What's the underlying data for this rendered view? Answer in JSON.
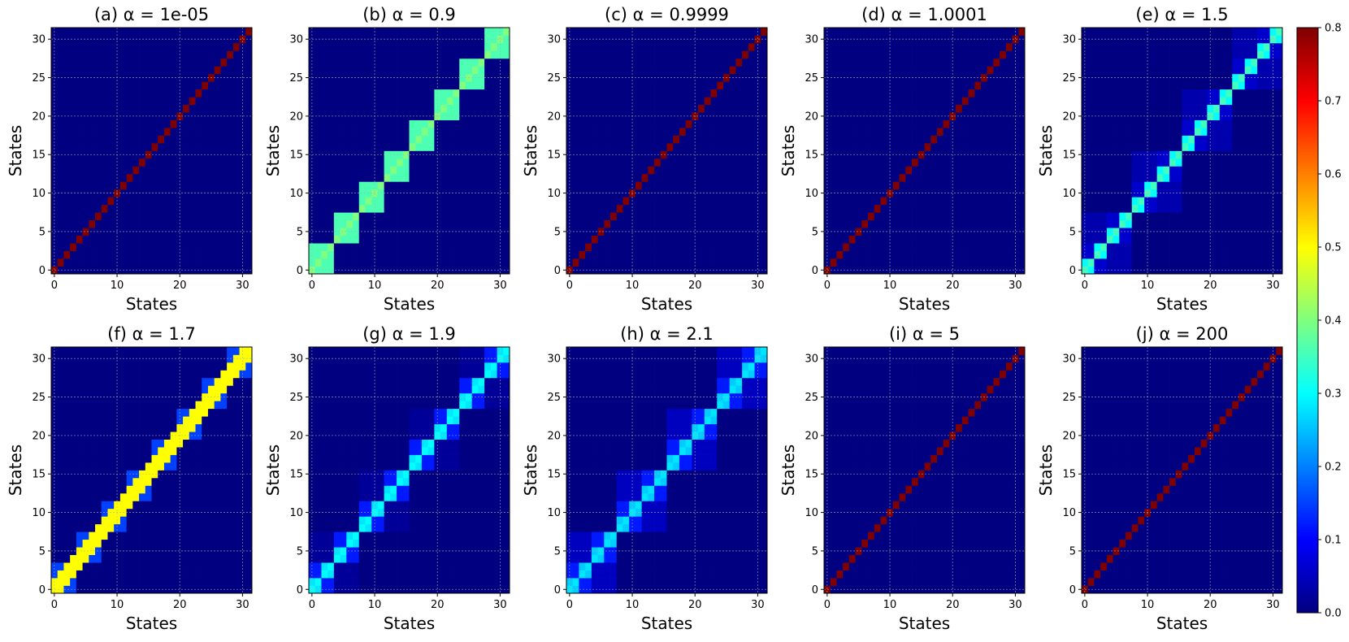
{
  "chart_data": [
    {
      "type": "heatmap",
      "title": "(a) α = 1e-05",
      "alpha": 1e-05,
      "pattern": "diagonal",
      "xlabel": "States",
      "ylabel": "States",
      "xlim": [
        -0.5,
        31.5
      ],
      "ylim": [
        -0.5,
        31.5
      ],
      "xticks": [
        0,
        10,
        20,
        30
      ],
      "yticks": [
        0,
        5,
        10,
        15,
        20,
        25,
        30
      ],
      "grid": true
    },
    {
      "type": "heatmap",
      "title": "(b) α = 0.9",
      "alpha": 0.9,
      "pattern": "block-4",
      "xlabel": "States",
      "ylabel": "States",
      "xlim": [
        -0.5,
        31.5
      ],
      "ylim": [
        -0.5,
        31.5
      ],
      "xticks": [
        0,
        10,
        20,
        30
      ],
      "yticks": [
        0,
        5,
        10,
        15,
        20,
        25,
        30
      ],
      "grid": true
    },
    {
      "type": "heatmap",
      "title": "(c) α = 0.9999",
      "alpha": 0.9999,
      "pattern": "diagonal",
      "xlabel": "States",
      "ylabel": "States",
      "xlim": [
        -0.5,
        31.5
      ],
      "ylim": [
        -0.5,
        31.5
      ],
      "xticks": [
        0,
        10,
        20,
        30
      ],
      "yticks": [
        0,
        5,
        10,
        15,
        20,
        25,
        30
      ],
      "grid": true
    },
    {
      "type": "heatmap",
      "title": "(d) α = 1.0001",
      "alpha": 1.0001,
      "pattern": "diagonal",
      "xlabel": "States",
      "ylabel": "States",
      "xlim": [
        -0.5,
        31.5
      ],
      "ylim": [
        -0.5,
        31.5
      ],
      "xticks": [
        0,
        10,
        20,
        30
      ],
      "yticks": [
        0,
        5,
        10,
        15,
        20,
        25,
        30
      ],
      "grid": true
    },
    {
      "type": "heatmap",
      "title": "(e) α = 1.5",
      "alpha": 1.5,
      "pattern": "hierarchical",
      "xlabel": "States",
      "ylabel": "States",
      "xlim": [
        -0.5,
        31.5
      ],
      "ylim": [
        -0.5,
        31.5
      ],
      "xticks": [
        0,
        10,
        20,
        30
      ],
      "yticks": [
        0,
        5,
        10,
        15,
        20,
        25,
        30
      ],
      "grid": true
    },
    {
      "type": "heatmap",
      "title": "(f) α = 1.7",
      "alpha": 1.7,
      "pattern": "tridiagonal-blocks",
      "xlabel": "States",
      "ylabel": "States",
      "xlim": [
        -0.5,
        31.5
      ],
      "ylim": [
        -0.5,
        31.5
      ],
      "xticks": [
        0,
        10,
        20,
        30
      ],
      "yticks": [
        0,
        5,
        10,
        15,
        20,
        25,
        30
      ],
      "grid": true
    },
    {
      "type": "heatmap",
      "title": "(g) α = 1.9",
      "alpha": 1.9,
      "pattern": "band-blocks",
      "xlabel": "States",
      "ylabel": "States",
      "xlim": [
        -0.5,
        31.5
      ],
      "ylim": [
        -0.5,
        31.5
      ],
      "xticks": [
        0,
        10,
        20,
        30
      ],
      "yticks": [
        0,
        5,
        10,
        15,
        20,
        25,
        30
      ],
      "grid": true
    },
    {
      "type": "heatmap",
      "title": "(h) α = 2.1",
      "alpha": 2.1,
      "pattern": "band-blocks-wide",
      "xlabel": "States",
      "ylabel": "States",
      "xlim": [
        -0.5,
        31.5
      ],
      "ylim": [
        -0.5,
        31.5
      ],
      "xticks": [
        0,
        10,
        20,
        30
      ],
      "yticks": [
        0,
        5,
        10,
        15,
        20,
        25,
        30
      ],
      "grid": true
    },
    {
      "type": "heatmap",
      "title": "(i) α = 5",
      "alpha": 5,
      "pattern": "diagonal",
      "xlabel": "States",
      "ylabel": "States",
      "xlim": [
        -0.5,
        31.5
      ],
      "ylim": [
        -0.5,
        31.5
      ],
      "xticks": [
        0,
        10,
        20,
        30
      ],
      "yticks": [
        0,
        5,
        10,
        15,
        20,
        25,
        30
      ],
      "grid": true
    },
    {
      "type": "heatmap",
      "title": "(j) α = 200",
      "alpha": 200,
      "pattern": "diagonal",
      "xlabel": "States",
      "ylabel": "States",
      "xlim": [
        -0.5,
        31.5
      ],
      "ylim": [
        -0.5,
        31.5
      ],
      "xticks": [
        0,
        10,
        20,
        30
      ],
      "yticks": [
        0,
        5,
        10,
        15,
        20,
        25,
        30
      ],
      "grid": true
    }
  ],
  "colorbar": {
    "colormap": "jet",
    "range": [
      0.0,
      0.8
    ],
    "ticks": [
      "0.0",
      "0.1",
      "0.2",
      "0.3",
      "0.4",
      "0.5",
      "0.6",
      "0.7",
      "0.8"
    ]
  },
  "values_by_pattern": {
    "diagonal": {
      "diag": 0.8,
      "background": 0.0
    },
    "block-4": {
      "diag": 0.4,
      "offdiag_in_block": 0.36,
      "background": 0.0
    },
    "hierarchical": {
      "diag": 0.35,
      "offdiag_pair": 0.3,
      "block4": 0.06,
      "block8": 0.035,
      "background": 0.0
    },
    "tridiagonal-blocks": {
      "diag": 0.5,
      "offdiag_pair": 0.5,
      "block4": 0.15,
      "background": 0.0
    },
    "band-blocks": {
      "diag": 0.3,
      "offdiag_pair": 0.28,
      "block4": 0.12,
      "block8": 0.02,
      "background": 0.0
    },
    "band-blocks-wide": {
      "diag": 0.28,
      "offdiag_pair": 0.26,
      "block4": 0.12,
      "block8": 0.05,
      "background": 0.0
    }
  }
}
